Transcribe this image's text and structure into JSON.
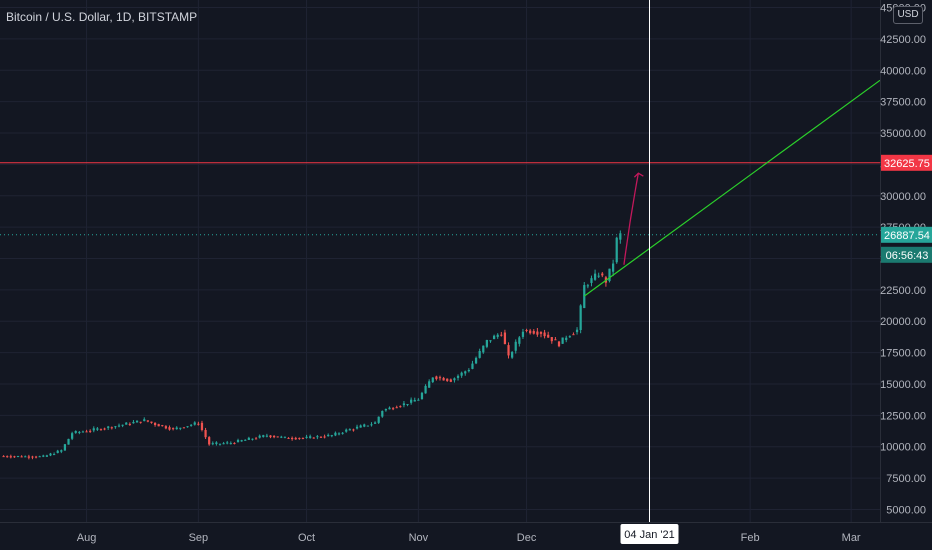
{
  "header": {
    "title": "Bitcoin / U.S. Dollar, 1D, BITSTAMP",
    "currency_button": "USD"
  },
  "colors": {
    "background": "#131722",
    "grid": "#1f2333",
    "up": "#26a69a",
    "down": "#ef5350",
    "resistance": "#f23645",
    "trend": "#2bd12b",
    "projection_arrow": "#c2185b",
    "cursor": "#ffffff",
    "axis_text": "#b2b5be"
  },
  "labels": {
    "resistance_value": "32625.75",
    "last_price": "26887.54",
    "countdown": "06:56:43",
    "cursor_date": "04 Jan '21"
  },
  "chart_data": {
    "type": "candlestick",
    "title": "Bitcoin / U.S. Dollar, 1D, BITSTAMP",
    "y_axis_position": "right",
    "y_ticks": [
      5000,
      7500,
      10000,
      12500,
      15000,
      17500,
      20000,
      22500,
      25000,
      27500,
      30000,
      32500,
      35000,
      37500,
      40000,
      42500,
      45000
    ],
    "y_tick_labels": [
      "5000.00",
      "7500.00",
      "10000.00",
      "12500.00",
      "15000.00",
      "17500.00",
      "20000.00",
      "22500.00",
      "25000.00",
      "27500.00",
      "30000.00",
      "32500.00",
      "35000.00",
      "37500.00",
      "40000.00",
      "42500.00",
      "45000.00"
    ],
    "x_ticks": [
      "2020-08-01",
      "2020-09-01",
      "2020-10-01",
      "2020-11-01",
      "2020-12-01",
      "2021-02-01",
      "2021-03-01"
    ],
    "x_tick_labels": [
      "Aug",
      "Sep",
      "Oct",
      "Nov",
      "Dec",
      "Feb",
      "Mar"
    ],
    "x_range": [
      "2020-07-08",
      "2021-03-09"
    ],
    "y_range": [
      4000,
      45600
    ],
    "grid": true,
    "close_anchors": [
      [
        "2020-07-08",
        9250
      ],
      [
        "2020-07-20",
        9200
      ],
      [
        "2020-07-25",
        9700
      ],
      [
        "2020-07-28",
        11100
      ],
      [
        "2020-08-02",
        11300
      ],
      [
        "2020-08-10",
        11700
      ],
      [
        "2020-08-17",
        12100
      ],
      [
        "2020-08-20",
        11800
      ],
      [
        "2020-08-25",
        11400
      ],
      [
        "2020-09-01",
        11900
      ],
      [
        "2020-09-04",
        10200
      ],
      [
        "2020-09-10",
        10300
      ],
      [
        "2020-09-20",
        10900
      ],
      [
        "2020-09-25",
        10700
      ],
      [
        "2020-10-01",
        10700
      ],
      [
        "2020-10-08",
        10900
      ],
      [
        "2020-10-12",
        11300
      ],
      [
        "2020-10-20",
        11900
      ],
      [
        "2020-10-22",
        12900
      ],
      [
        "2020-10-28",
        13400
      ],
      [
        "2020-11-01",
        13800
      ],
      [
        "2020-11-05",
        15600
      ],
      [
        "2020-11-10",
        15300
      ],
      [
        "2020-11-15",
        16200
      ],
      [
        "2020-11-20",
        18400
      ],
      [
        "2020-11-24",
        19100
      ],
      [
        "2020-11-26",
        17100
      ],
      [
        "2020-11-30",
        19300
      ],
      [
        "2020-12-05",
        19100
      ],
      [
        "2020-12-10",
        18200
      ],
      [
        "2020-12-12",
        18800
      ],
      [
        "2020-12-15",
        19300
      ],
      [
        "2020-12-17",
        22800
      ],
      [
        "2020-12-21",
        23800
      ],
      [
        "2020-12-23",
        23200
      ],
      [
        "2020-12-25",
        24700
      ],
      [
        "2020-12-26",
        26500
      ],
      [
        "2020-12-27",
        26887
      ]
    ],
    "resistance_level": 32625.75,
    "last_price": 26887.54,
    "trendline": [
      [
        "2020-12-17",
        22000
      ],
      [
        "2021-03-09",
        39200
      ]
    ],
    "projection_arrow": [
      [
        "2020-12-28",
        24500
      ],
      [
        "2021-01-01",
        31800
      ]
    ],
    "cursor_date": "2021-01-04"
  }
}
